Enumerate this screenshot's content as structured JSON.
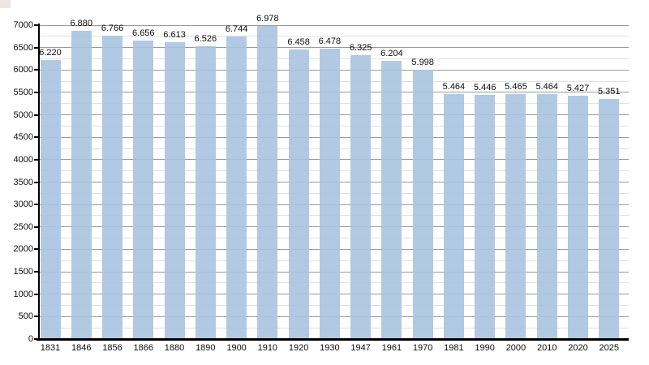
{
  "chart_data": {
    "type": "bar",
    "title": "",
    "xlabel": "",
    "ylabel": "",
    "categories": [
      "1831",
      "1846",
      "1856",
      "1866",
      "1880",
      "1890",
      "1900",
      "1910",
      "1920",
      "1930",
      "1947",
      "1961",
      "1970",
      "1981",
      "1990",
      "2000",
      "2010",
      "2020",
      "2025"
    ],
    "values": [
      6220,
      6880,
      6766,
      6656,
      6613,
      6526,
      6744,
      6978,
      6458,
      6478,
      6325,
      6204,
      5998,
      5464,
      5446,
      5465,
      5464,
      5427,
      5351
    ],
    "value_labels": [
      "6.220",
      "6.880",
      "6.766",
      "6.656",
      "6.613",
      "6.526",
      "6.744",
      "6.978",
      "6.458",
      "6.478",
      "6.325",
      "6.204",
      "5.998",
      "5.464",
      "5.446",
      "5.465",
      "5.464",
      "5.427",
      "5.351"
    ],
    "ylim": [
      0,
      7000
    ],
    "ytick_step": 500,
    "yminor_step": 250,
    "ytick_labels": [
      "0",
      "500",
      "1000",
      "1500",
      "2000",
      "2500",
      "3000",
      "3500",
      "4000",
      "4500",
      "5000",
      "5500",
      "6000",
      "6500",
      "7000"
    ],
    "grid": "horizontal major and minor lines, on",
    "legend": "none",
    "colors": {
      "bar_fill": "#a9c3e0",
      "bar_fill_opacity": 0.9,
      "major_gridline": "#9a9a9a",
      "minor_gridline": "#e2e2e2",
      "axis_line": "#000000",
      "label_text": "#0d0d0d",
      "background": "#ffffff",
      "corner_artifact": "#ece7e1"
    }
  }
}
